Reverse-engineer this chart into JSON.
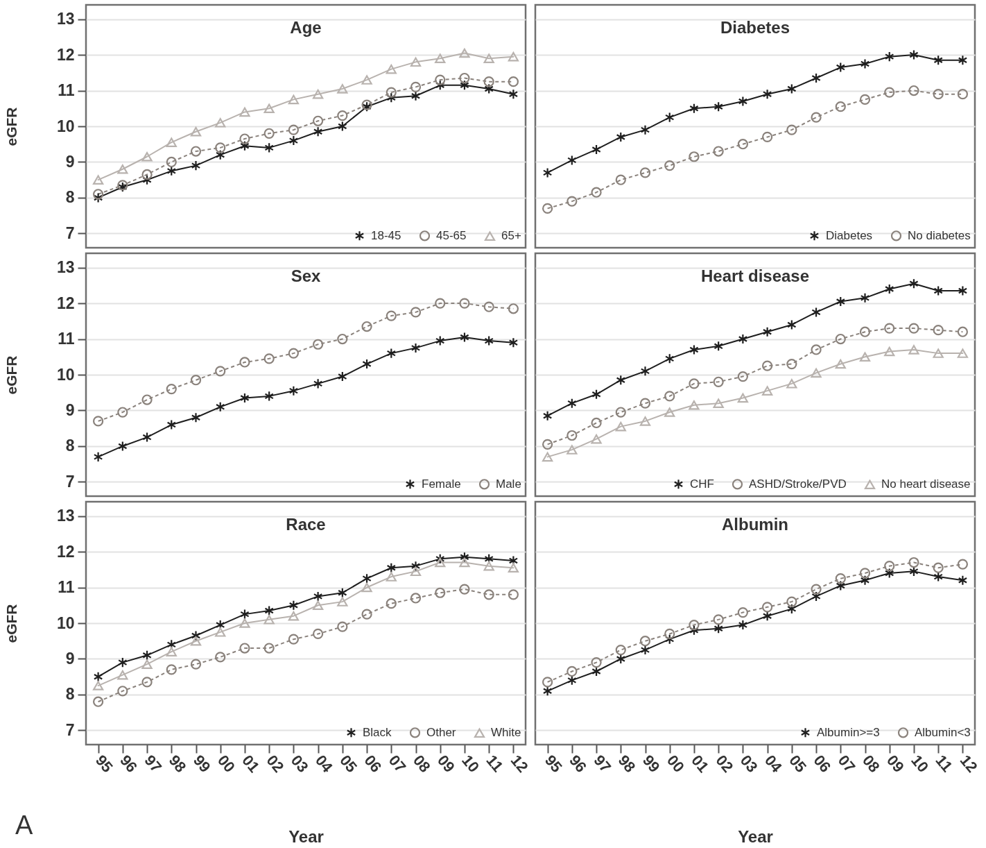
{
  "chart_data": [
    {
      "type": "line",
      "title": "Age",
      "ylabel": "eGFR",
      "categories": [
        "95",
        "96",
        "97",
        "98",
        "99",
        "00",
        "01",
        "02",
        "03",
        "04",
        "05",
        "06",
        "07",
        "08",
        "09",
        "10",
        "11",
        "12"
      ],
      "ylim": [
        6.6,
        13.4
      ],
      "yticks": [
        7,
        8,
        9,
        10,
        11,
        12,
        13
      ],
      "grid": "y",
      "legend": "bottom right",
      "tick_labels": "y",
      "series": [
        {
          "name": "18-45",
          "color": "#1e1e1e",
          "marker": "cross",
          "line_style": "solid",
          "values": [
            8.0,
            8.3,
            8.5,
            8.75,
            8.9,
            9.2,
            9.45,
            9.4,
            9.6,
            9.85,
            10.0,
            10.55,
            10.8,
            10.85,
            11.15,
            11.15,
            11.05,
            10.9
          ]
        },
        {
          "name": "45-65",
          "color": "#8a827c",
          "marker": "circle",
          "line_style": "dashed",
          "values": [
            8.1,
            8.35,
            8.65,
            9.0,
            9.3,
            9.4,
            9.65,
            9.8,
            9.9,
            10.15,
            10.3,
            10.6,
            10.95,
            11.1,
            11.3,
            11.35,
            11.25,
            11.25
          ]
        },
        {
          "name": "65+",
          "color": "#b8b2ae",
          "marker": "triangle",
          "line_style": "solid",
          "values": [
            8.5,
            8.8,
            9.15,
            9.55,
            9.85,
            10.1,
            10.4,
            10.5,
            10.75,
            10.9,
            11.05,
            11.3,
            11.6,
            11.8,
            11.9,
            12.05,
            11.9,
            11.95
          ]
        }
      ]
    },
    {
      "type": "line",
      "title": "Diabetes",
      "categories": [
        "95",
        "96",
        "97",
        "98",
        "99",
        "00",
        "01",
        "02",
        "03",
        "04",
        "05",
        "06",
        "07",
        "08",
        "09",
        "10",
        "11",
        "12"
      ],
      "ylim": [
        6.6,
        13.4
      ],
      "yticks": [
        7,
        8,
        9,
        10,
        11,
        12,
        13
      ],
      "grid": "y",
      "legend": "bottom right",
      "tick_labels": false,
      "series": [
        {
          "name": "Diabetes",
          "color": "#1e1e1e",
          "marker": "cross",
          "line_style": "solid",
          "values": [
            8.7,
            9.05,
            9.35,
            9.7,
            9.9,
            10.25,
            10.5,
            10.55,
            10.7,
            10.9,
            11.05,
            11.35,
            11.65,
            11.75,
            11.95,
            12.0,
            11.85,
            11.85
          ]
        },
        {
          "name": "No diabetes",
          "color": "#8a827c",
          "marker": "circle",
          "line_style": "dashed",
          "values": [
            7.7,
            7.9,
            8.15,
            8.5,
            8.7,
            8.9,
            9.15,
            9.3,
            9.5,
            9.7,
            9.9,
            10.25,
            10.55,
            10.75,
            10.95,
            11.0,
            10.9,
            10.9
          ]
        }
      ]
    },
    {
      "type": "line",
      "title": "Sex",
      "ylabel": "eGFR",
      "categories": [
        "95",
        "96",
        "97",
        "98",
        "99",
        "00",
        "01",
        "02",
        "03",
        "04",
        "05",
        "06",
        "07",
        "08",
        "09",
        "10",
        "11",
        "12"
      ],
      "ylim": [
        6.6,
        13.4
      ],
      "yticks": [
        7,
        8,
        9,
        10,
        11,
        12,
        13
      ],
      "grid": "y",
      "legend": "bottom right",
      "tick_labels": "y",
      "series": [
        {
          "name": "Female",
          "color": "#1e1e1e",
          "marker": "cross",
          "line_style": "solid",
          "values": [
            7.7,
            8.0,
            8.25,
            8.6,
            8.8,
            9.1,
            9.35,
            9.4,
            9.55,
            9.75,
            9.95,
            10.3,
            10.6,
            10.75,
            10.95,
            11.05,
            10.95,
            10.9
          ]
        },
        {
          "name": "Male",
          "color": "#8a827c",
          "marker": "circle",
          "line_style": "dashed",
          "values": [
            8.7,
            8.95,
            9.3,
            9.6,
            9.85,
            10.1,
            10.35,
            10.45,
            10.6,
            10.85,
            11.0,
            11.35,
            11.65,
            11.75,
            12.0,
            12.0,
            11.9,
            11.85
          ]
        }
      ]
    },
    {
      "type": "line",
      "title": "Heart disease",
      "categories": [
        "95",
        "96",
        "97",
        "98",
        "99",
        "00",
        "01",
        "02",
        "03",
        "04",
        "05",
        "06",
        "07",
        "08",
        "09",
        "10",
        "11",
        "12"
      ],
      "ylim": [
        6.6,
        13.4
      ],
      "yticks": [
        7,
        8,
        9,
        10,
        11,
        12,
        13
      ],
      "grid": "y",
      "legend": "bottom right",
      "tick_labels": false,
      "series": [
        {
          "name": "CHF",
          "color": "#1e1e1e",
          "marker": "cross",
          "line_style": "solid",
          "values": [
            8.85,
            9.2,
            9.45,
            9.85,
            10.1,
            10.45,
            10.7,
            10.8,
            11.0,
            11.2,
            11.4,
            11.75,
            12.05,
            12.15,
            12.4,
            12.55,
            12.35,
            12.35
          ]
        },
        {
          "name": "ASHD/Stroke/PVD",
          "color": "#8a827c",
          "marker": "circle",
          "line_style": "dashed",
          "values": [
            8.05,
            8.3,
            8.65,
            8.95,
            9.2,
            9.4,
            9.75,
            9.8,
            9.95,
            10.25,
            10.3,
            10.7,
            11.0,
            11.2,
            11.3,
            11.3,
            11.25,
            11.2
          ]
        },
        {
          "name": "No heart disease",
          "color": "#b8b2ae",
          "marker": "triangle",
          "line_style": "solid",
          "values": [
            7.7,
            7.9,
            8.2,
            8.55,
            8.7,
            8.95,
            9.15,
            9.2,
            9.35,
            9.55,
            9.75,
            10.05,
            10.3,
            10.5,
            10.65,
            10.7,
            10.6,
            10.6
          ]
        }
      ]
    },
    {
      "type": "line",
      "title": "Race",
      "xlabel": "Year",
      "ylabel": "eGFR",
      "annotations": [
        "A"
      ],
      "categories": [
        "95",
        "96",
        "97",
        "98",
        "99",
        "00",
        "01",
        "02",
        "03",
        "04",
        "05",
        "06",
        "07",
        "08",
        "09",
        "10",
        "11",
        "12"
      ],
      "ylim": [
        6.6,
        13.4
      ],
      "yticks": [
        7,
        8,
        9,
        10,
        11,
        12,
        13
      ],
      "grid": "y",
      "legend": "bottom right",
      "series": [
        {
          "name": "Black",
          "color": "#1e1e1e",
          "marker": "cross",
          "line_style": "solid",
          "values": [
            8.5,
            8.9,
            9.1,
            9.4,
            9.65,
            9.95,
            10.25,
            10.35,
            10.5,
            10.75,
            10.85,
            11.25,
            11.55,
            11.6,
            11.8,
            11.85,
            11.8,
            11.75
          ]
        },
        {
          "name": "Other",
          "color": "#8a827c",
          "marker": "circle",
          "line_style": "dashed",
          "values": [
            7.8,
            8.1,
            8.35,
            8.7,
            8.85,
            9.05,
            9.3,
            9.3,
            9.55,
            9.7,
            9.9,
            10.25,
            10.55,
            10.7,
            10.85,
            10.95,
            10.8,
            10.8
          ]
        },
        {
          "name": "White",
          "color": "#b8b2ae",
          "marker": "triangle",
          "line_style": "solid",
          "values": [
            8.25,
            8.55,
            8.85,
            9.2,
            9.5,
            9.75,
            10.0,
            10.1,
            10.2,
            10.5,
            10.6,
            11.0,
            11.3,
            11.45,
            11.7,
            11.7,
            11.6,
            11.55
          ]
        }
      ]
    },
    {
      "type": "line",
      "title": "Albumin",
      "xlabel": "Year",
      "categories": [
        "95",
        "96",
        "97",
        "98",
        "99",
        "00",
        "01",
        "02",
        "03",
        "04",
        "05",
        "06",
        "07",
        "08",
        "09",
        "10",
        "11",
        "12"
      ],
      "ylim": [
        6.6,
        13.4
      ],
      "yticks": [
        7,
        8,
        9,
        10,
        11,
        12,
        13
      ],
      "grid": "y",
      "legend": "bottom right",
      "tick_labels": "x",
      "series": [
        {
          "name": "Albumin>=3",
          "color": "#1e1e1e",
          "marker": "cross",
          "line_style": "solid",
          "values": [
            8.1,
            8.4,
            8.65,
            9.0,
            9.25,
            9.55,
            9.8,
            9.85,
            9.95,
            10.2,
            10.4,
            10.75,
            11.05,
            11.2,
            11.4,
            11.45,
            11.3,
            11.2
          ]
        },
        {
          "name": "Albumin<3",
          "color": "#8a827c",
          "marker": "circle",
          "line_style": "dashed",
          "values": [
            8.35,
            8.65,
            8.9,
            9.25,
            9.5,
            9.7,
            9.95,
            10.1,
            10.3,
            10.45,
            10.6,
            10.95,
            11.25,
            11.4,
            11.6,
            11.7,
            11.55,
            11.65
          ]
        }
      ]
    }
  ]
}
